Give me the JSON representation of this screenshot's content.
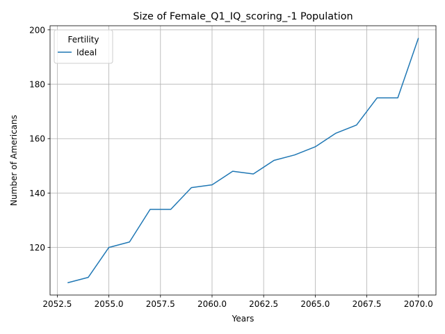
{
  "chart_data": {
    "type": "line",
    "title": "Size of Female_Q1_IQ_scoring_-1 Population",
    "xlabel": "Years",
    "ylabel": "Number of Americans",
    "xlim": [
      2052.15,
      2070.85
    ],
    "ylim": [
      102.5,
      201.5
    ],
    "xticks": [
      2052.5,
      2055.0,
      2057.5,
      2060.0,
      2062.5,
      2065.0,
      2067.5,
      2070.0
    ],
    "xtick_labels": [
      "2052.5",
      "2055.0",
      "2057.5",
      "2060.0",
      "2062.5",
      "2065.0",
      "2067.5",
      "2070.0"
    ],
    "yticks": [
      120,
      140,
      160,
      180,
      200
    ],
    "ytick_labels": [
      "120",
      "140",
      "160",
      "180",
      "200"
    ],
    "grid": true,
    "legend": {
      "title": "Fertility",
      "placement": "top-left"
    },
    "series": [
      {
        "name": "Ideal",
        "color": "#1f77b4",
        "x": [
          2053,
          2054,
          2055,
          2056,
          2057,
          2058,
          2059,
          2060,
          2061,
          2062,
          2063,
          2064,
          2065,
          2066,
          2067,
          2068,
          2069,
          2070
        ],
        "y": [
          107,
          109,
          120,
          122,
          134,
          134,
          142,
          143,
          148,
          147,
          152,
          154,
          157,
          162,
          165,
          175,
          175,
          197
        ]
      }
    ]
  }
}
